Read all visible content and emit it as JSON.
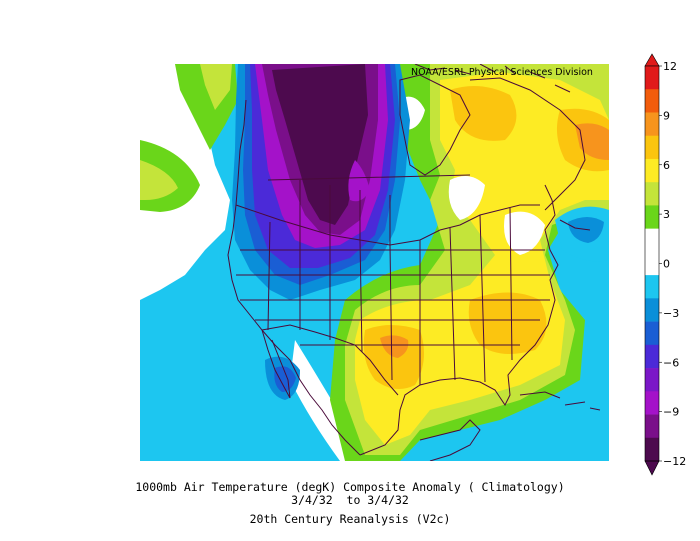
{
  "credit": "NOAA/ESRL Physical Sciences Division",
  "caption": {
    "line1": "1000mb Air Temperature (degK) Composite Anomaly ( Climatology)",
    "line2": "3/4/32  to 3/4/32",
    "line3": "20th Century Reanalysis (V2c)"
  },
  "colorbar": {
    "ticks": [
      "12",
      "9",
      "6",
      "3",
      "0",
      "−3",
      "−6",
      "−9",
      "−12"
    ],
    "tick_values": [
      12,
      9,
      6,
      3,
      0,
      -3,
      -6,
      -9,
      -12
    ],
    "colors_top_to_bottom": [
      "#e01a1a",
      "#f25c0c",
      "#f7941d",
      "#fbc50f",
      "#fdeb24",
      "#c4e43a",
      "#6ad61a",
      "#ffffff",
      "#ffffff",
      "#1dc6f0",
      "#0a8fd9",
      "#1a5ed4",
      "#4b2ad8",
      "#7b17c8",
      "#a412c9",
      "#7a0f8a",
      "#4d0a4e"
    ]
  },
  "colors": {
    "deep_purple": "#4d0a4e",
    "purple": "#7a0f8a",
    "magenta": "#a412c9",
    "violet": "#4b2ad8",
    "blue": "#1a5ed4",
    "mid_blue": "#0a8fd9",
    "cyan": "#1dc6f0",
    "green": "#6ad61a",
    "yellow_green": "#c4e43a",
    "yellow": "#fdeb24",
    "gold": "#fbc50f",
    "orange": "#f7941d",
    "coastline": "#4a0a3a"
  }
}
